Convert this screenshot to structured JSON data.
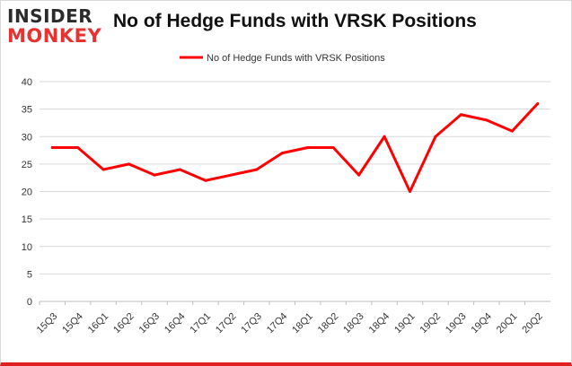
{
  "logo": {
    "line1": "INSIDER",
    "line2": "MONKEY"
  },
  "chart_data": {
    "type": "line",
    "title": "No of Hedge Funds with VRSK Positions",
    "xlabel": "",
    "ylabel": "",
    "categories": [
      "15Q3",
      "15Q4",
      "16Q1",
      "16Q2",
      "16Q3",
      "16Q4",
      "17Q1",
      "17Q2",
      "17Q3",
      "17Q4",
      "18Q1",
      "18Q2",
      "18Q3",
      "18Q4",
      "19Q1",
      "19Q2",
      "19Q3",
      "19Q4",
      "20Q1",
      "20Q2"
    ],
    "series": [
      {
        "name": "No of Hedge Funds with VRSK Positions",
        "values": [
          28,
          28,
          24,
          25,
          23,
          24,
          22,
          23,
          24,
          27,
          28,
          28,
          23,
          30,
          20,
          30,
          34,
          33,
          31,
          36
        ]
      }
    ],
    "ylim": [
      0,
      40
    ],
    "yticks": [
      0,
      5,
      10,
      15,
      20,
      25,
      30,
      35,
      40
    ],
    "grid": true,
    "legend_position": "top-center",
    "line_color": "#ff0000",
    "grid_color": "#d9d9d9"
  }
}
